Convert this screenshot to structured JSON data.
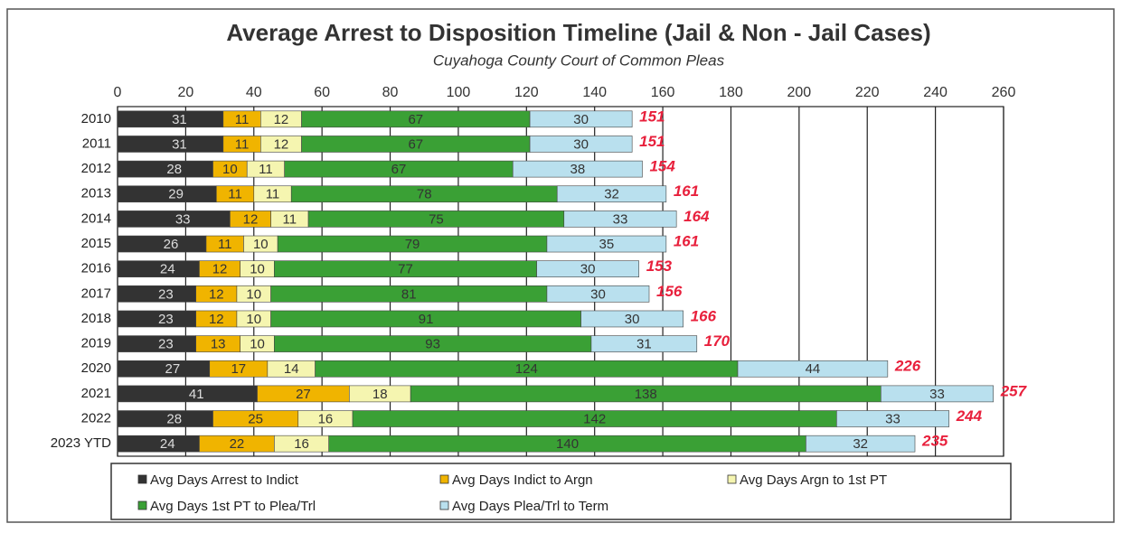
{
  "chart_data": {
    "type": "stacked-bar-horizontal",
    "title": "Average Arrest to Disposition Timeline (Jail & Non - Jail Cases)",
    "subtitle": "Cuyahoga County Court of Common Pleas",
    "categories": [
      "2010",
      "2011",
      "2012",
      "2013",
      "2014",
      "2015",
      "2016",
      "2017",
      "2018",
      "2019",
      "2020",
      "2021",
      "2022",
      "2023 YTD"
    ],
    "series": [
      {
        "name": "Avg Days Arrest to Indict",
        "color": "#333333",
        "values": [
          31,
          31,
          28,
          29,
          33,
          26,
          24,
          23,
          23,
          23,
          27,
          41,
          28,
          24
        ]
      },
      {
        "name": "Avg Days Indict to Argn",
        "color": "#f0b400",
        "values": [
          11,
          11,
          10,
          11,
          12,
          11,
          12,
          12,
          12,
          13,
          17,
          27,
          25,
          22
        ]
      },
      {
        "name": "Avg Days Argn to 1st PT",
        "color": "#f5f5b0",
        "values": [
          12,
          12,
          11,
          11,
          11,
          10,
          10,
          10,
          10,
          10,
          14,
          18,
          16,
          16
        ]
      },
      {
        "name": "Avg Days 1st PT to Plea/Trl",
        "color": "#3aa035",
        "values": [
          67,
          67,
          67,
          78,
          75,
          79,
          77,
          81,
          91,
          93,
          124,
          138,
          142,
          140
        ]
      },
      {
        "name": "Avg Days Plea/Trl to Term",
        "color": "#b9e0ee",
        "values": [
          30,
          30,
          38,
          32,
          33,
          35,
          30,
          30,
          30,
          31,
          44,
          33,
          33,
          32
        ]
      }
    ],
    "totals": [
      151,
      151,
      154,
      161,
      164,
      161,
      153,
      156,
      166,
      170,
      226,
      257,
      244,
      235
    ],
    "xlim": [
      0,
      260
    ],
    "xticks": [
      0,
      20,
      40,
      60,
      80,
      100,
      120,
      140,
      160,
      180,
      200,
      220,
      240,
      260
    ],
    "grid": true
  }
}
